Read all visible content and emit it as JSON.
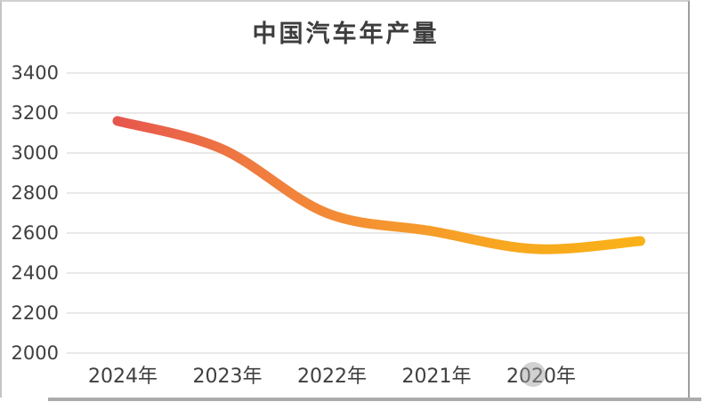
{
  "chart_data": {
    "type": "line",
    "title": "中国汽车年产量",
    "categories": [
      "2024年",
      "2023年",
      "2022年",
      "2021年",
      "2020年",
      ""
    ],
    "values": [
      3160,
      3020,
      2700,
      2610,
      2520,
      2560
    ],
    "note": "single smooth gradient line; x axis runs 2024 on the left to 2020 on the right; the line continues to one unlabeled trailing point right of 2020年",
    "xlabel": "",
    "ylabel": "",
    "ylim": [
      2000,
      3400
    ],
    "yticks": [
      3400,
      3200,
      3000,
      2800,
      2600,
      2400,
      2200,
      2000
    ],
    "grid": "horizontal only",
    "legend": "none",
    "colors": {
      "line_gradient": [
        "#e7564e",
        "#ef7a40",
        "#f59430",
        "#f8a81f",
        "#f9b118"
      ],
      "grid": "#e6e6e6",
      "tick_text": "#3f3f3f",
      "title_text": "#3d3d3d",
      "card_border_light": "#c9c9c9",
      "card_border_dark": "#9e9e9e",
      "watermark": "#9e9e9e"
    }
  }
}
